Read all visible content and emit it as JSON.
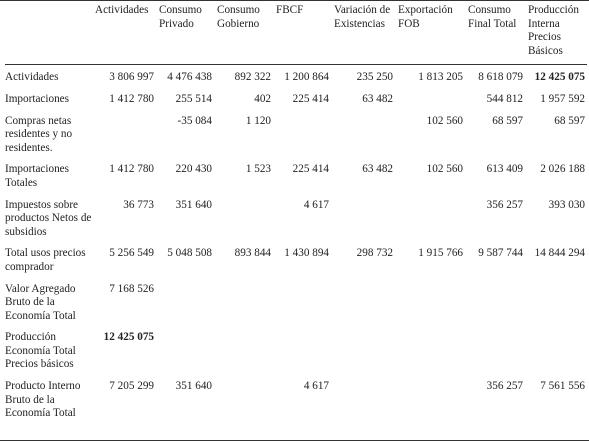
{
  "table": {
    "headers": [
      "",
      "Actividades",
      "Consumo Privado",
      "Consumo Gobierno",
      "FBCF",
      "Variación de Existencias",
      "Exportación FOB",
      "Consumo Final Total",
      "Producción Interna Precios Básicos"
    ],
    "rows": [
      {
        "label": "Actividades",
        "cells": [
          "3 806 997",
          "4 476 438",
          "892 322",
          "1 200 864",
          "235 250",
          "1 813 205",
          "8 618 079",
          "12 425 075"
        ]
      },
      {
        "label": "Importaciones",
        "cells": [
          "1 412 780",
          "255 514",
          "402",
          "225 414",
          "63 482",
          "",
          "544 812",
          "1 957 592"
        ]
      },
      {
        "label": "Compras netas residentes y no residentes.",
        "cells": [
          "",
          "-35 084",
          "1 120",
          "",
          "",
          "102 560",
          "68 597",
          "68 597"
        ]
      },
      {
        "label": "Importaciones Totales",
        "cells": [
          "1 412 780",
          "220 430",
          "1 523",
          "225 414",
          "63 482",
          "102 560",
          "613 409",
          "2 026 188"
        ]
      },
      {
        "label": "Impuestos sobre productos Netos de subsidios",
        "cells": [
          "36 773",
          "351 640",
          "",
          "4 617",
          "",
          "",
          "356 257",
          "393 030"
        ]
      },
      {
        "label": "Total usos precios comprador",
        "cells": [
          "5 256 549",
          "5 048 508",
          "893 844",
          "1 430 894",
          "298 732",
          "1 915 766",
          "9 587 744",
          "14 844 294"
        ]
      },
      {
        "label": "Valor Agregado Bruto de la Economía Total",
        "cells": [
          "7 168 526",
          "",
          "",
          "",
          "",
          "",
          "",
          ""
        ]
      },
      {
        "label": "Producción Economía Total Precios básicos",
        "cells": [
          "12 425 075",
          "",
          "",
          "",
          "",
          "",
          "",
          ""
        ]
      },
      {
        "label": "Producto Interno Bruto de la Economía Total",
        "cells": [
          "7 205 299",
          "351 640",
          "",
          "4 617",
          "",
          "",
          "356 257",
          "7 561 556"
        ]
      }
    ]
  }
}
